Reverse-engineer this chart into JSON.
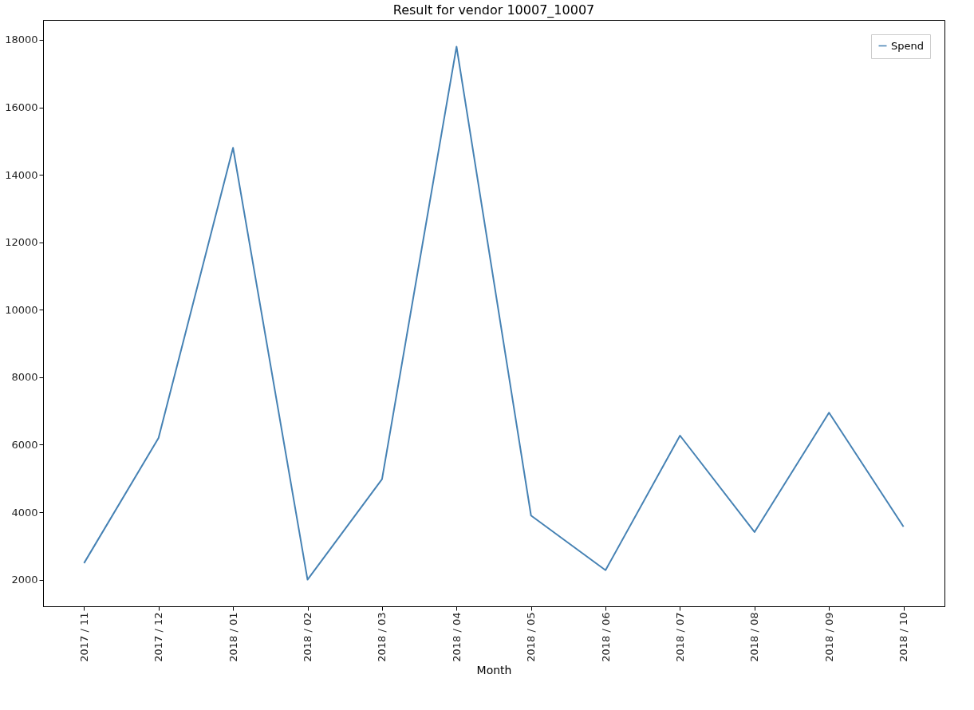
{
  "chart_data": {
    "type": "line",
    "title": "Result for vendor 10007_10007",
    "xlabel": "Month",
    "categories": [
      "2017 / 11",
      "2017 / 12",
      "2018 / 01",
      "2018 / 02",
      "2018 / 03",
      "2018 / 04",
      "2018 / 05",
      "2018 / 06",
      "2018 / 07",
      "2018 / 08",
      "2018 / 09",
      "2018 / 10"
    ],
    "series": [
      {
        "name": "Spend",
        "color": "#4682b4",
        "values": [
          2490,
          6200,
          14800,
          2000,
          4980,
          17800,
          3900,
          2280,
          6270,
          3410,
          6950,
          3570
        ]
      }
    ],
    "ylim": [
      1210,
      18590
    ],
    "yticks": [
      2000,
      4000,
      6000,
      8000,
      10000,
      12000,
      14000,
      16000,
      18000
    ],
    "grid": false,
    "legend": "top right",
    "marker": "none",
    "line_style": "solid"
  }
}
